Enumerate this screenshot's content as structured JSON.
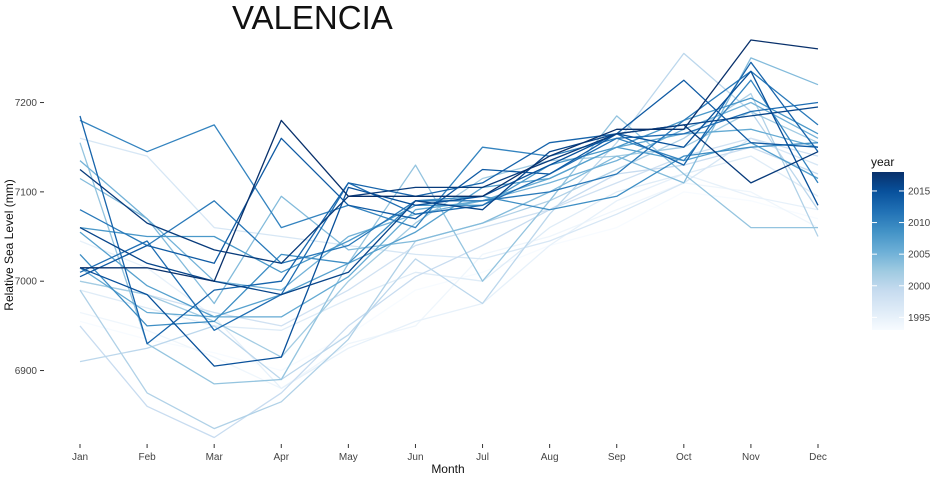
{
  "chart_data": {
    "type": "line",
    "title": "VALENCIA",
    "xlabel": "Month",
    "ylabel": "Relative Sea Level (mm)",
    "categories": [
      "Jan",
      "Feb",
      "Mar",
      "Apr",
      "May",
      "Jun",
      "Jul",
      "Aug",
      "Sep",
      "Oct",
      "Nov",
      "Dec"
    ],
    "ylim": [
      6820,
      7270
    ],
    "yticks": [
      6900,
      7000,
      7100,
      7200
    ],
    "grid": false,
    "legend": {
      "title": "year",
      "placement": "right",
      "type": "continuous colorbar",
      "range": [
        1993,
        2018
      ],
      "ticks": [
        1995,
        2000,
        2005,
        2010,
        2015
      ],
      "colors": [
        "#f7fbff",
        "#deebf7",
        "#c6dbef",
        "#9ecae1",
        "#6baed6",
        "#4292c6",
        "#2171b5",
        "#08519c",
        "#08306b"
      ]
    },
    "series": [
      {
        "year": 1993,
        "values": [
          6955,
          6935,
          6920,
          6900,
          6940,
          6990,
          7010,
          7040,
          7060,
          7100,
          7090,
          7070
        ]
      },
      {
        "year": 1994,
        "values": [
          6965,
          6945,
          6915,
          6880,
          6930,
          6950,
          7030,
          7050,
          7080,
          7110,
          7100,
          7060
        ]
      },
      {
        "year": 1995,
        "values": [
          7045,
          7015,
          6960,
          6880,
          6925,
          6955,
          6975,
          7040,
          7090,
          7120,
          7095,
          7080
        ]
      },
      {
        "year": 1996,
        "values": [
          6990,
          6970,
          6950,
          6945,
          6980,
          7010,
          7000,
          7060,
          7100,
          7120,
          7140,
          7095
        ]
      },
      {
        "year": 1997,
        "values": [
          7160,
          7140,
          7060,
          7050,
          7040,
          7030,
          7025,
          7045,
          7075,
          7110,
          7160,
          7130
        ]
      },
      {
        "year": 1998,
        "values": [
          7000,
          6985,
          6965,
          6950,
          6990,
          7040,
          7060,
          7080,
          7110,
          7140,
          7160,
          7140
        ]
      },
      {
        "year": 1999,
        "values": [
          6950,
          6860,
          6825,
          6875,
          6950,
          7005,
          7040,
          7080,
          7120,
          7130,
          7150,
          7120
        ]
      },
      {
        "year": 2000,
        "values": [
          6910,
          6925,
          6950,
          6890,
          6940,
          7025,
          6975,
          7075,
          7155,
          7255,
          7190,
          7080
        ]
      },
      {
        "year": 2001,
        "values": [
          6990,
          6875,
          6835,
          6865,
          6935,
          7045,
          7065,
          7090,
          7125,
          7160,
          7210,
          7050
        ]
      },
      {
        "year": 2002,
        "values": [
          7000,
          6985,
          6955,
          6915,
          7000,
          7065,
          7115,
          7135,
          7140,
          7150,
          7190,
          7155
        ]
      },
      {
        "year": 2003,
        "values": [
          7155,
          6930,
          6885,
          6890,
          7020,
          7130,
          7000,
          7090,
          7185,
          7120,
          7060,
          7060
        ]
      },
      {
        "year": 2004,
        "values": [
          7115,
          7070,
          6975,
          7095,
          7035,
          7045,
          7065,
          7100,
          7140,
          7110,
          7250,
          7220
        ]
      },
      {
        "year": 2005,
        "values": [
          7135,
          7070,
          7000,
          6990,
          7050,
          7075,
          7090,
          7110,
          7135,
          7170,
          7200,
          7160
        ]
      },
      {
        "year": 2006,
        "values": [
          7015,
          6965,
          6960,
          6960,
          7005,
          7080,
          7090,
          7115,
          7150,
          7165,
          7170,
          7150
        ]
      },
      {
        "year": 2007,
        "values": [
          7055,
          6995,
          6960,
          6985,
          7020,
          7055,
          7105,
          7115,
          7150,
          7135,
          7155,
          7115
        ]
      },
      {
        "year": 2008,
        "values": [
          7060,
          7050,
          7050,
          7010,
          7045,
          7085,
          7085,
          7130,
          7150,
          7180,
          7205,
          7165
        ]
      },
      {
        "year": 2009,
        "values": [
          7030,
          6950,
          6955,
          7030,
          7020,
          7090,
          7095,
          7080,
          7095,
          7140,
          7150,
          7155
        ]
      },
      {
        "year": 2010,
        "values": [
          7180,
          7145,
          7175,
          7060,
          7085,
          7060,
          7150,
          7140,
          7160,
          7135,
          7225,
          7110
        ]
      },
      {
        "year": 2011,
        "values": [
          7080,
          7040,
          7090,
          7020,
          7040,
          7090,
          7090,
          7100,
          7120,
          7180,
          7235,
          7175
        ]
      },
      {
        "year": 2012,
        "values": [
          7010,
          7045,
          6945,
          6985,
          7110,
          7075,
          7085,
          7120,
          7160,
          7165,
          7190,
          7200
        ]
      },
      {
        "year": 2013,
        "values": [
          7185,
          6930,
          6990,
          7000,
          7110,
          7095,
          7110,
          7155,
          7165,
          7130,
          7245,
          7145
        ]
      },
      {
        "year": 2014,
        "values": [
          7005,
          7040,
          7020,
          7160,
          7085,
          7070,
          7125,
          7120,
          7165,
          7225,
          7155,
          7150
        ]
      },
      {
        "year": 2015,
        "values": [
          7015,
          6985,
          6905,
          6915,
          7105,
          7085,
          7095,
          7130,
          7165,
          7150,
          7235,
          7085
        ]
      },
      {
        "year": 2016,
        "values": [
          7060,
          7020,
          7000,
          6985,
          7010,
          7090,
          7080,
          7145,
          7165,
          7175,
          7185,
          7195
        ]
      },
      {
        "year": 2017,
        "values": [
          7125,
          7065,
          7035,
          7020,
          7095,
          7105,
          7105,
          7135,
          7165,
          7175,
          7110,
          7145
        ]
      },
      {
        "year": 2018,
        "values": [
          7015,
          7015,
          7000,
          7180,
          7095,
          7095,
          7095,
          7140,
          7170,
          7170,
          7270,
          7260
        ]
      }
    ]
  }
}
